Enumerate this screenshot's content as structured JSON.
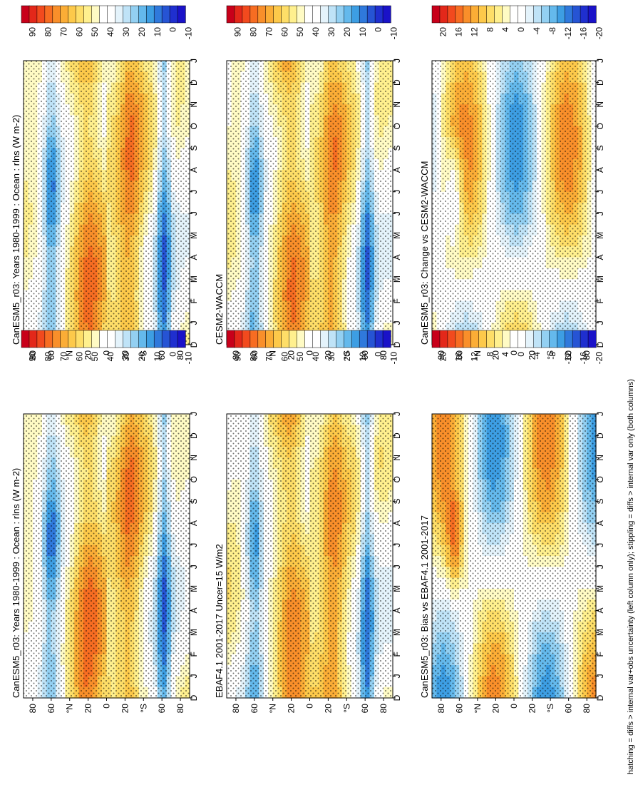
{
  "footnote": "hatching = diffs > internal var+obs uncertainty (left column only); stippling = diffs > internal var only (both columns)",
  "months_axis": [
    "D",
    "J",
    "F",
    "M",
    "A",
    "M",
    "J",
    "J",
    "A",
    "S",
    "O",
    "N",
    "D",
    "J"
  ],
  "lat_ticks": [
    "80",
    "60",
    "°N",
    "20",
    "0",
    "20",
    "°S",
    "60",
    "80"
  ],
  "colorbars": {
    "absolute": {
      "labels": [
        "90",
        "80",
        "70",
        "60",
        "50",
        "40",
        "30",
        "20",
        "10",
        "0",
        "-10"
      ],
      "colors": [
        "#c8001a",
        "#e3281a",
        "#f24a1e",
        "#f76d22",
        "#f98f2a",
        "#fbad36",
        "#fdc94a",
        "#fede68",
        "#fff08e",
        "#fffbc4",
        "#ffffff",
        "#ffffff",
        "#e4f3fb",
        "#bfe3f7",
        "#93d0f2",
        "#64b9ec",
        "#3d9ee3",
        "#2f79dc",
        "#2654d4",
        "#1f2fcf",
        "#1a12c8"
      ]
    },
    "difference": {
      "labels": [
        "20",
        "16",
        "12",
        "8",
        "4",
        "0",
        "-4",
        "-8",
        "-12",
        "-16",
        "-20"
      ],
      "colors": [
        "#c8001a",
        "#e3281a",
        "#f24a1e",
        "#f76d22",
        "#f98f2a",
        "#fbad36",
        "#fdc94a",
        "#fede68",
        "#fff08e",
        "#fffbc4",
        "#ffffff",
        "#ffffff",
        "#e4f3fb",
        "#bfe3f7",
        "#93d0f2",
        "#64b9ec",
        "#3d9ee3",
        "#2f79dc",
        "#2654d4",
        "#1f2fcf",
        "#1a12c8"
      ]
    }
  },
  "panels": [
    {
      "id": "p1",
      "title": "CanESM5_r03: Years 1980-1999 : Ocean : rlns (W m-2)",
      "scale": "absolute",
      "field": "abs"
    },
    {
      "id": "p2",
      "title": "CanESM5_r03: Years 1980-1999 : Ocean : rlns (W m-2)",
      "scale": "absolute",
      "field": "abs"
    },
    {
      "id": "p3",
      "title": "EBAF4.1 2001-2017 Uncer=15 W/m2",
      "scale": "absolute",
      "field": "abs"
    },
    {
      "id": "p4",
      "title": "CESM2-WACCM",
      "scale": "absolute",
      "field": "abs"
    },
    {
      "id": "p5",
      "title": "CanESM5_r03: Bias vs EBAF4.1 2001-2017",
      "scale": "difference",
      "field": "diff"
    },
    {
      "id": "p6",
      "title": "CanESM5_r03: Change vs CESM2-WACCM",
      "scale": "difference",
      "field": "diff"
    }
  ],
  "chart_data": [
    {
      "type": "heatmap",
      "title": "CanESM5_r03: Years 1980-1999 : Ocean : rlns (W m-2)",
      "x": [
        "D",
        "J",
        "F",
        "M",
        "A",
        "M",
        "J",
        "J",
        "A",
        "S",
        "O",
        "N",
        "D",
        "J"
      ],
      "y": [
        "80N",
        "60N",
        "40N",
        "20N",
        "0",
        "20S",
        "40S",
        "60S",
        "80S"
      ],
      "colorbar": [
        -10,
        90
      ]
    },
    {
      "type": "heatmap",
      "title": "CanESM5_r03: Years 1980-1999 : Ocean : rlns (W m-2)",
      "x": [
        "D",
        "J",
        "F",
        "M",
        "A",
        "M",
        "J",
        "J",
        "A",
        "S",
        "O",
        "N",
        "D",
        "J"
      ],
      "y": [
        "80N",
        "60N",
        "40N",
        "20N",
        "0",
        "20S",
        "40S",
        "60S",
        "80S"
      ],
      "colorbar": [
        -10,
        90
      ]
    },
    {
      "type": "heatmap",
      "title": "EBAF4.1 2001-2017 Uncer=15 W/m2",
      "x": [
        "D",
        "J",
        "F",
        "M",
        "A",
        "M",
        "J",
        "J",
        "A",
        "S",
        "O",
        "N",
        "D",
        "J"
      ],
      "y": [
        "80N",
        "60N",
        "40N",
        "20N",
        "0",
        "20S",
        "40S",
        "60S",
        "80S"
      ],
      "colorbar": [
        -10,
        90
      ]
    },
    {
      "type": "heatmap",
      "title": "CESM2-WACCM",
      "x": [
        "D",
        "J",
        "F",
        "M",
        "A",
        "M",
        "J",
        "J",
        "A",
        "S",
        "O",
        "N",
        "D",
        "J"
      ],
      "y": [
        "80N",
        "60N",
        "40N",
        "20N",
        "0",
        "20S",
        "40S",
        "60S",
        "80S"
      ],
      "colorbar": [
        -10,
        90
      ]
    },
    {
      "type": "heatmap",
      "title": "CanESM5_r03: Bias vs EBAF4.1 2001-2017",
      "x": [
        "D",
        "J",
        "F",
        "M",
        "A",
        "M",
        "J",
        "J",
        "A",
        "S",
        "O",
        "N",
        "D",
        "J"
      ],
      "y": [
        "80N",
        "60N",
        "40N",
        "20N",
        "0",
        "20S",
        "40S",
        "60S",
        "80S"
      ],
      "colorbar": [
        -20,
        20
      ]
    },
    {
      "type": "heatmap",
      "title": "CanESM5_r03: Change vs CESM2-WACCM",
      "x": [
        "D",
        "J",
        "F",
        "M",
        "A",
        "M",
        "J",
        "J",
        "A",
        "S",
        "O",
        "N",
        "D",
        "J"
      ],
      "y": [
        "80N",
        "60N",
        "40N",
        "20N",
        "0",
        "20S",
        "40S",
        "60S",
        "80S"
      ],
      "colorbar": [
        -20,
        20
      ]
    }
  ]
}
